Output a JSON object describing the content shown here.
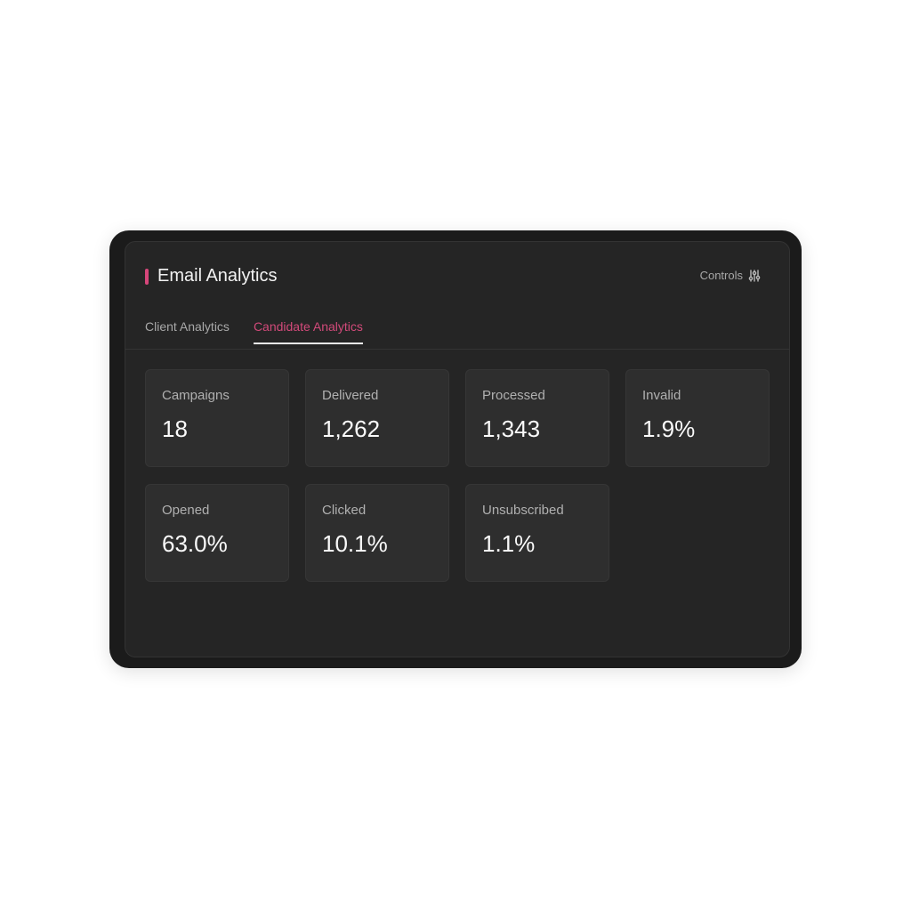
{
  "header": {
    "title": "Email Analytics",
    "controls_label": "Controls",
    "controls_icon": "sliders-icon",
    "accent_color": "#d6467a"
  },
  "tabs": [
    {
      "label": "Client Analytics",
      "active": false
    },
    {
      "label": "Candidate Analytics",
      "active": true
    }
  ],
  "metrics": [
    {
      "label": "Campaigns",
      "value": "18"
    },
    {
      "label": "Delivered",
      "value": "1,262"
    },
    {
      "label": "Processed",
      "value": "1,343"
    },
    {
      "label": "Invalid",
      "value": "1.9%"
    },
    {
      "label": "Opened",
      "value": "63.0%"
    },
    {
      "label": "Clicked",
      "value": "10.1%"
    },
    {
      "label": "Unsubscribed",
      "value": "1.1%"
    }
  ]
}
